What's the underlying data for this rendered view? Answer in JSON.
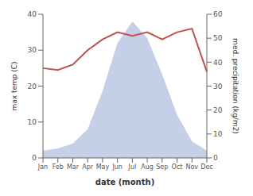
{
  "chart_data": {
    "type": "line",
    "categories": [
      "Jan",
      "Feb",
      "Mar",
      "Apr",
      "May",
      "Jun",
      "Jul",
      "Aug",
      "Sep",
      "Oct",
      "Nov",
      "Dec"
    ],
    "series": [
      {
        "type": "area",
        "color": "#c5cfe8",
        "values": [
          3,
          4,
          6,
          12,
          28,
          48,
          57,
          50,
          35,
          18,
          7,
          3
        ],
        "axis": "y2"
      },
      {
        "type": "line",
        "color": "#c0504d",
        "values": [
          25,
          24.5,
          26,
          30,
          33,
          35,
          34,
          35,
          33,
          35,
          36,
          24
        ]
      }
    ],
    "xlabel": "date (month)",
    "ylabel": "max temp (C)",
    "y2label": "med. precipitation (kg/m2)",
    "ylim": [
      0,
      40
    ],
    "yticks": [
      0,
      10,
      20,
      30,
      40
    ],
    "y2lim": [
      0,
      60
    ],
    "y2ticks": [
      0,
      10,
      20,
      30,
      40,
      50,
      60
    ],
    "grid": false
  }
}
